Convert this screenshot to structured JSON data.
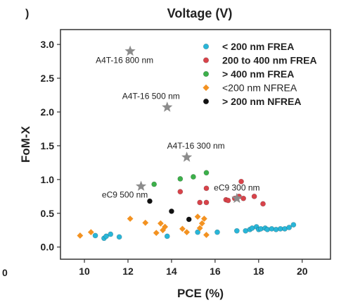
{
  "top_label": "Voltage (V)",
  "corner_left_top": ")",
  "corner_left_bottom": "0",
  "chart_data": {
    "type": "scatter",
    "xlabel": "PCE (%)",
    "ylabel": "FoM-X",
    "xlim": [
      8.9,
      21.3
    ],
    "ylim": [
      -0.18,
      3.22
    ],
    "xticks": [
      10,
      12,
      14,
      16,
      18,
      20
    ],
    "yticks": [
      0.0,
      0.5,
      1.0,
      1.5,
      2.0,
      2.5,
      3.0
    ],
    "legend_position": "top-right",
    "series": [
      {
        "name": "< 200 nm FREA",
        "marker": "circle",
        "color": "#29b6d8",
        "points": [
          [
            10.5,
            0.17
          ],
          [
            10.9,
            0.13
          ],
          [
            11.0,
            0.16
          ],
          [
            11.2,
            0.19
          ],
          [
            11.6,
            0.15
          ],
          [
            13.8,
            0.16
          ],
          [
            15.2,
            0.22
          ],
          [
            16.1,
            0.22
          ],
          [
            17.0,
            0.24
          ],
          [
            17.4,
            0.24
          ],
          [
            17.6,
            0.26
          ],
          [
            17.7,
            0.28
          ],
          [
            17.9,
            0.3
          ],
          [
            18.0,
            0.26
          ],
          [
            18.1,
            0.27
          ],
          [
            18.3,
            0.28
          ],
          [
            18.4,
            0.26
          ],
          [
            18.6,
            0.27
          ],
          [
            18.8,
            0.26
          ],
          [
            19.0,
            0.27
          ],
          [
            19.2,
            0.27
          ],
          [
            19.4,
            0.29
          ],
          [
            19.6,
            0.33
          ]
        ]
      },
      {
        "name": "200 to 400 nm FREA",
        "marker": "circle",
        "color": "#d8434a",
        "points": [
          [
            14.4,
            0.82
          ],
          [
            15.3,
            0.66
          ],
          [
            15.6,
            0.66
          ],
          [
            15.6,
            0.87
          ],
          [
            16.5,
            0.7
          ],
          [
            16.6,
            0.69
          ],
          [
            16.9,
            0.72
          ],
          [
            17.1,
            0.75
          ],
          [
            17.2,
            0.97
          ],
          [
            17.3,
            0.72
          ],
          [
            17.8,
            0.75
          ],
          [
            18.2,
            0.64
          ]
        ]
      },
      {
        "name": "> 400 nm FREA",
        "marker": "circle",
        "color": "#3cb04a",
        "points": [
          [
            13.2,
            0.93
          ],
          [
            14.4,
            1.01
          ],
          [
            15.0,
            1.04
          ],
          [
            15.6,
            1.1
          ]
        ]
      },
      {
        "name": "<200 nm NFREA",
        "marker": "diamond",
        "color": "#f39221",
        "points": [
          [
            9.8,
            0.17
          ],
          [
            10.3,
            0.22
          ],
          [
            12.1,
            0.42
          ],
          [
            12.8,
            0.36
          ],
          [
            13.3,
            0.21
          ],
          [
            13.5,
            0.35
          ],
          [
            13.6,
            0.25
          ],
          [
            13.7,
            0.3
          ],
          [
            14.5,
            0.27
          ],
          [
            14.7,
            0.22
          ],
          [
            15.2,
            0.45
          ],
          [
            15.3,
            0.28
          ],
          [
            15.4,
            0.35
          ],
          [
            15.5,
            0.42
          ],
          [
            15.6,
            0.18
          ]
        ]
      },
      {
        "name": "> 200 nm NFREA",
        "marker": "circle",
        "color": "#111111",
        "points": [
          [
            13.0,
            0.68
          ],
          [
            14.0,
            0.53
          ],
          [
            14.8,
            0.41
          ]
        ]
      }
    ],
    "highlighted": [
      {
        "label": "A4T-16 800 nm",
        "x": 12.1,
        "y": 2.9
      },
      {
        "label": "A4T-16 500 nm",
        "x": 13.8,
        "y": 2.07
      },
      {
        "label": "A4T-16 300 nm",
        "x": 14.7,
        "y": 1.33
      },
      {
        "label": "eC9 500 nm",
        "x": 12.6,
        "y": 0.9
      },
      {
        "label": "eC9 300 nm",
        "x": 17.0,
        "y": 0.72
      }
    ]
  }
}
